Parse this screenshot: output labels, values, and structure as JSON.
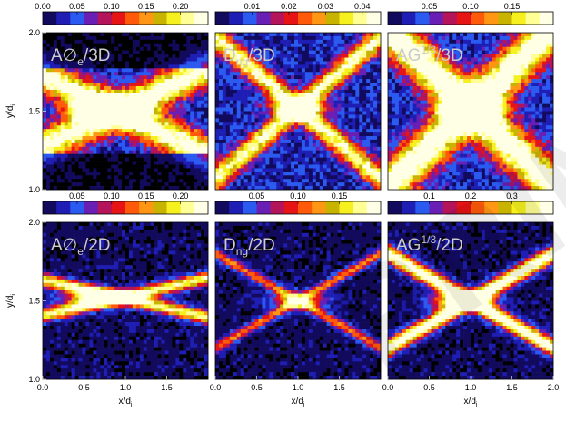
{
  "figure": {
    "colors": {
      "colormap": [
        "#000000",
        "#120a5c",
        "#1e1eb4",
        "#2a5af0",
        "#6a1fb4",
        "#b4145a",
        "#e61414",
        "#ff5a0a",
        "#ff9614",
        "#c8b400",
        "#f5f01e",
        "#ffff96",
        "#ffffe6"
      ],
      "panel_label": "#cccccc"
    },
    "watermark_text": "PRINT"
  },
  "chart_data": [
    {
      "type": "heatmap",
      "row": 0,
      "col": 0,
      "label_main": "A∅",
      "label_sub": "e",
      "label_sup": "",
      "label_tail": "/3D",
      "colorbar": {
        "ticks": [
          "0.00",
          "0.05",
          "0.10",
          "0.15",
          "0.20"
        ],
        "ticks_above": true,
        "range": [
          0,
          0.24
        ]
      },
      "xlabel": "",
      "ylabel": "y/d",
      "yticks": [
        "1.0",
        "1.5",
        "2.0"
      ],
      "xticks": [],
      "xlim": [
        0,
        2
      ],
      "ylim": [
        1,
        2
      ],
      "features": [
        {
          "type": "x",
          "cross_x": 0.9,
          "cross_y": 1.5,
          "slope": 0.25,
          "width": 0.08,
          "intensity": 0.85,
          "blob": 0.7,
          "blob_x": 0.65
        }
      ]
    },
    {
      "type": "heatmap",
      "row": 0,
      "col": 1,
      "label_main": "D",
      "label_sub": "ng",
      "label_sup": "",
      "label_tail": "/3D",
      "colorbar": {
        "ticks": [
          "0.01",
          "0.02",
          "0.03",
          "0.04"
        ],
        "ticks_above": true,
        "range": [
          0,
          0.045
        ]
      },
      "xlabel": "",
      "ylabel": "",
      "yticks": [],
      "xticks": [],
      "xlim": [
        0,
        2
      ],
      "ylim": [
        1,
        2
      ],
      "features": [
        {
          "type": "x",
          "cross_x": 1.0,
          "cross_y": 1.52,
          "slope": 0.45,
          "width": 0.06,
          "intensity": 0.75,
          "blob": 0.6,
          "blob_x": 1.0
        }
      ]
    },
    {
      "type": "heatmap",
      "row": 0,
      "col": 2,
      "label_main": "AG",
      "label_sub": "",
      "label_sup": "1/3",
      "label_tail": "/3D",
      "colorbar": {
        "ticks": [
          "0.05",
          "0.10",
          "0.15"
        ],
        "ticks_above": true,
        "range": [
          0,
          0.2
        ]
      },
      "xlabel": "",
      "ylabel": "",
      "yticks": [],
      "xticks": [],
      "xlim": [
        0,
        2
      ],
      "ylim": [
        1,
        2
      ],
      "features": [
        {
          "type": "x",
          "cross_x": 1.0,
          "cross_y": 1.52,
          "slope": 0.5,
          "width": 0.12,
          "intensity": 0.9,
          "blob": 0.8,
          "blob_x": 1.0
        }
      ]
    },
    {
      "type": "heatmap",
      "row": 1,
      "col": 0,
      "label_main": "A∅",
      "label_sub": "e",
      "label_sup": "",
      "label_tail": "/2D",
      "colorbar": {
        "ticks": [
          "0.05",
          "0.10",
          "0.15",
          "0.20"
        ],
        "ticks_above": true,
        "range": [
          0,
          0.24
        ]
      },
      "xlabel": "x/d",
      "ylabel": "y/d",
      "yticks": [
        "1.0",
        "1.5",
        "2.0"
      ],
      "xticks": [
        "0.0",
        "0.5",
        "1.0",
        "1.5"
      ],
      "xlim": [
        0,
        2
      ],
      "ylim": [
        1,
        2
      ],
      "features": [
        {
          "type": "x",
          "cross_x": 0.95,
          "cross_y": 1.52,
          "slope": 0.12,
          "width": 0.03,
          "intensity": 0.8,
          "blob": 0.6,
          "blob_x": 0.6
        }
      ]
    },
    {
      "type": "heatmap",
      "row": 1,
      "col": 1,
      "label_main": "D",
      "label_sub": "ng",
      "label_sup": "",
      "label_tail": "/2D",
      "colorbar": {
        "ticks": [
          "0.05",
          "0.10",
          "0.15"
        ],
        "ticks_above": true,
        "range": [
          0,
          0.2
        ]
      },
      "xlabel": "x/d",
      "ylabel": "",
      "yticks": [],
      "xticks": [
        "0.0",
        "0.5",
        "1.0",
        "1.5"
      ],
      "xlim": [
        0,
        2
      ],
      "ylim": [
        1,
        2
      ],
      "features": [
        {
          "type": "x",
          "cross_x": 1.0,
          "cross_y": 1.5,
          "slope": 0.3,
          "width": 0.025,
          "intensity": 0.5,
          "blob": 0.5,
          "blob_x": 1.0
        }
      ]
    },
    {
      "type": "heatmap",
      "row": 1,
      "col": 2,
      "label_main": "AG",
      "label_sub": "",
      "label_sup": "1/3",
      "label_tail": "/2D",
      "colorbar": {
        "ticks": [
          "0.1",
          "0.2",
          "0.3"
        ],
        "ticks_above": true,
        "range": [
          0,
          0.4
        ]
      },
      "xlabel": "x/d",
      "ylabel": "",
      "yticks": [],
      "xticks": [
        "0.0",
        "0.5",
        "1.0",
        "1.5",
        "2.0"
      ],
      "xlim": [
        0,
        2
      ],
      "ylim": [
        1,
        2
      ],
      "features": [
        {
          "type": "x",
          "cross_x": 1.0,
          "cross_y": 1.5,
          "slope": 0.3,
          "width": 0.04,
          "intensity": 0.95,
          "blob": 0.9,
          "blob_x": 0.9
        }
      ]
    }
  ]
}
